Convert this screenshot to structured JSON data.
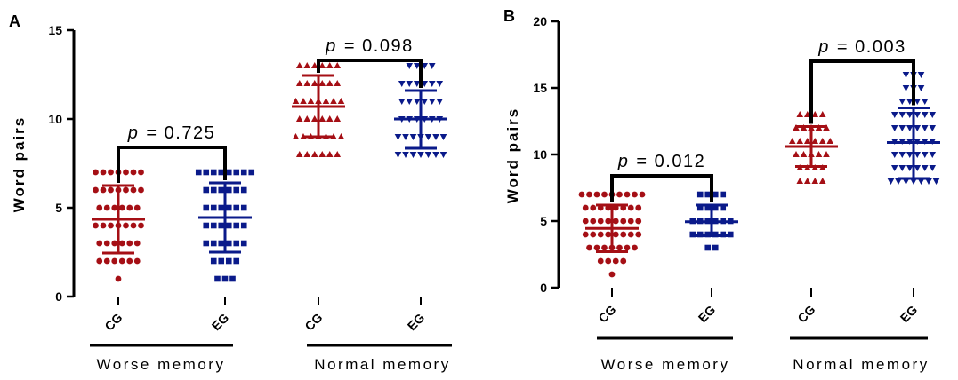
{
  "colors": {
    "CG": "#a50f15",
    "EG": "#0a1a8a"
  },
  "chart_data": [
    {
      "panel": "A",
      "type": "scatter",
      "ylabel": "Word pairs",
      "ylim": [
        0,
        15
      ],
      "yticks": [
        0,
        5,
        10,
        15
      ],
      "groups": [
        {
          "label": "Worse memory",
          "categories": [
            "CG",
            "EG"
          ]
        },
        {
          "label": "Normal memory",
          "categories": [
            "CG",
            "EG"
          ]
        }
      ],
      "comparisons": [
        {
          "group": "Worse memory",
          "text": "p = 0.725",
          "p_label": "p",
          "p_value": "= 0.725",
          "y": 8.4
        },
        {
          "group": "Normal memory",
          "text": "p = 0.098",
          "p_label": "p",
          "p_value": "= 0.098",
          "y": 13.3
        }
      ],
      "series": [
        {
          "name": "CG",
          "group": "Worse memory",
          "marker": "circle",
          "mean": 4.35,
          "sd_low": 2.45,
          "sd_high": 6.25,
          "counts": {
            "1": 1,
            "2": 6,
            "3": 6,
            "4": 7,
            "5": 6,
            "6": 7,
            "7": 7
          }
        },
        {
          "name": "EG",
          "group": "Worse memory",
          "marker": "square",
          "mean": 4.45,
          "sd_low": 2.5,
          "sd_high": 6.4,
          "counts": {
            "1": 3,
            "2": 4,
            "3": 6,
            "4": 6,
            "5": 6,
            "6": 6,
            "7": 8
          }
        },
        {
          "name": "CG",
          "group": "Normal memory",
          "marker": "triangle-up",
          "mean": 10.7,
          "sd_low": 9.0,
          "sd_high": 12.45,
          "counts": {
            "8": 6,
            "9": 7,
            "10": 6,
            "11": 7,
            "12": 6,
            "13": 6
          }
        },
        {
          "name": "EG",
          "group": "Normal memory",
          "marker": "triangle-down",
          "mean": 10.0,
          "sd_low": 8.35,
          "sd_high": 11.6,
          "counts": {
            "8": 7,
            "9": 7,
            "10": 6,
            "11": 6,
            "12": 6,
            "13": 4
          }
        }
      ]
    },
    {
      "panel": "B",
      "type": "scatter",
      "ylabel": "Word pairs",
      "ylim": [
        0,
        20
      ],
      "yticks": [
        0,
        5,
        10,
        15,
        20
      ],
      "groups": [
        {
          "label": "Worse memory",
          "categories": [
            "CG",
            "EG"
          ]
        },
        {
          "label": "Normal memory",
          "categories": [
            "CG",
            "EG"
          ]
        }
      ],
      "comparisons": [
        {
          "group": "Worse memory",
          "text": "p = 0.012",
          "p_label": "p",
          "p_value": "= 0.012",
          "y": 8.4
        },
        {
          "group": "Normal memory",
          "text": "p = 0.003",
          "p_label": "p",
          "p_value": "= 0.003",
          "y": 17.0
        }
      ],
      "series": [
        {
          "name": "CG",
          "group": "Worse memory",
          "marker": "circle",
          "mean": 4.45,
          "sd_low": 2.7,
          "sd_high": 6.2,
          "counts": {
            "1": 1,
            "2": 4,
            "3": 7,
            "4": 8,
            "5": 8,
            "6": 8,
            "7": 9
          }
        },
        {
          "name": "EG",
          "group": "Worse memory",
          "marker": "square",
          "mean": 4.95,
          "sd_low": 3.9,
          "sd_high": 6.2,
          "counts": {
            "3": 2,
            "4": 6,
            "5": 6,
            "6": 4,
            "7": 4
          }
        },
        {
          "name": "CG",
          "group": "Normal memory",
          "marker": "triangle-up",
          "mean": 10.6,
          "sd_low": 9.1,
          "sd_high": 12.1,
          "counts": {
            "8": 4,
            "9": 4,
            "10": 5,
            "11": 6,
            "12": 5,
            "13": 4
          }
        },
        {
          "name": "EG",
          "group": "Normal memory",
          "marker": "triangle-down",
          "mean": 10.9,
          "sd_low": 8.2,
          "sd_high": 13.5,
          "counts": {
            "8": 7,
            "9": 6,
            "10": 6,
            "11": 6,
            "12": 6,
            "13": 6,
            "14": 4,
            "15": 3,
            "16": 3
          }
        }
      ]
    }
  ]
}
